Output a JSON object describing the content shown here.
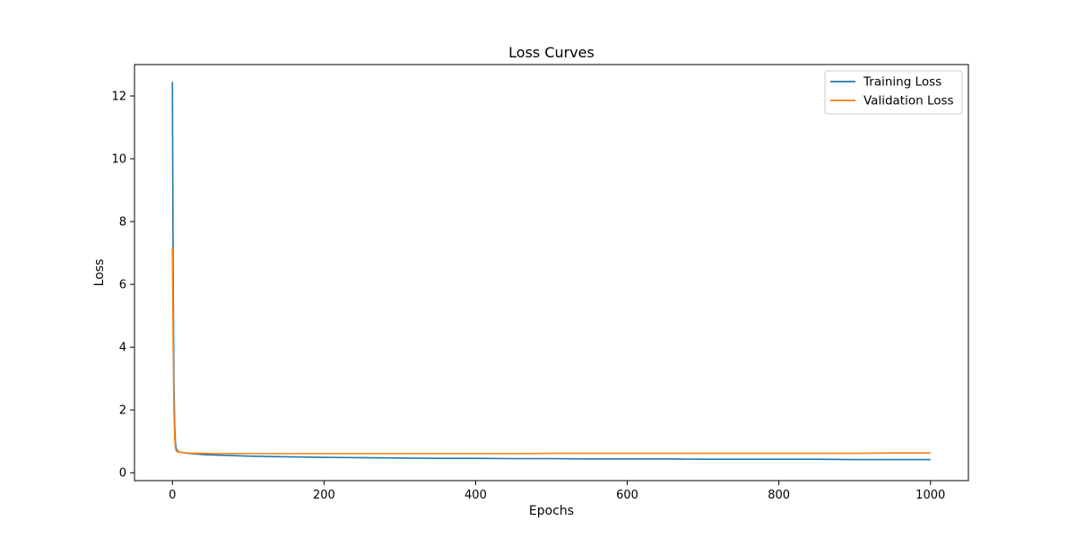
{
  "chart_data": {
    "type": "line",
    "title": "Loss Curves",
    "xlabel": "Epochs",
    "ylabel": "Loss",
    "xlim": [
      -50,
      1050
    ],
    "ylim": [
      -0.25,
      13.0
    ],
    "xticks": [
      0,
      200,
      400,
      600,
      800,
      1000
    ],
    "yticks": [
      0,
      2,
      4,
      6,
      8,
      10,
      12
    ],
    "grid": false,
    "legend_position": "top-right",
    "series": [
      {
        "name": "Training Loss",
        "color": "#1f77b4",
        "x": [
          0,
          1,
          2,
          3,
          4,
          5,
          6,
          8,
          10,
          15,
          20,
          30,
          40,
          50,
          75,
          100,
          150,
          200,
          250,
          300,
          350,
          400,
          450,
          500,
          550,
          600,
          650,
          700,
          750,
          800,
          850,
          900,
          950,
          1000
        ],
        "y": [
          12.45,
          6.2,
          2.9,
          1.5,
          0.95,
          0.78,
          0.72,
          0.68,
          0.66,
          0.64,
          0.62,
          0.6,
          0.58,
          0.57,
          0.55,
          0.53,
          0.51,
          0.49,
          0.48,
          0.47,
          0.46,
          0.46,
          0.45,
          0.45,
          0.44,
          0.44,
          0.44,
          0.43,
          0.43,
          0.43,
          0.43,
          0.42,
          0.42,
          0.42
        ]
      },
      {
        "name": "Validation Loss",
        "color": "#ff7f0e",
        "x": [
          0,
          1,
          2,
          3,
          4,
          5,
          6,
          8,
          10,
          15,
          20,
          30,
          40,
          50,
          75,
          100,
          150,
          200,
          250,
          300,
          350,
          400,
          450,
          500,
          550,
          600,
          650,
          700,
          750,
          800,
          850,
          900,
          950,
          1000
        ],
        "y": [
          7.15,
          4.2,
          2.0,
          1.1,
          0.8,
          0.7,
          0.68,
          0.66,
          0.65,
          0.64,
          0.63,
          0.62,
          0.62,
          0.61,
          0.61,
          0.61,
          0.61,
          0.61,
          0.61,
          0.61,
          0.61,
          0.61,
          0.61,
          0.62,
          0.62,
          0.62,
          0.62,
          0.62,
          0.62,
          0.62,
          0.62,
          0.62,
          0.63,
          0.63
        ]
      }
    ]
  }
}
